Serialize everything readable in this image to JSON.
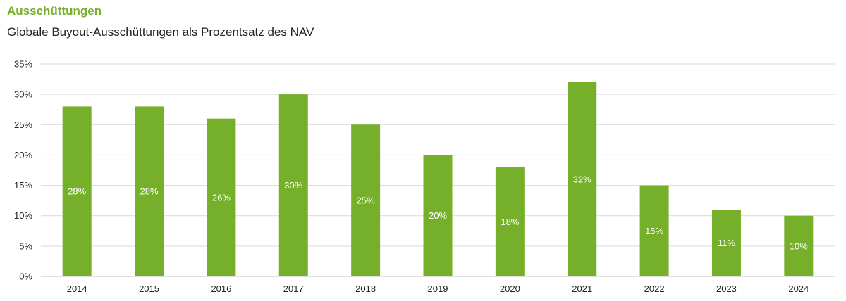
{
  "header": {
    "title": "Ausschüttungen",
    "subtitle": "Globale Buyout-Ausschüttungen als Prozentsatz des NAV"
  },
  "chart_data": {
    "type": "bar",
    "title": "Ausschüttungen",
    "subtitle": "Globale Buyout-Ausschüttungen als Prozentsatz des NAV",
    "categories": [
      "2014",
      "2015",
      "2016",
      "2017",
      "2018",
      "2019",
      "2020",
      "2021",
      "2022",
      "2023",
      "2024"
    ],
    "values": [
      28,
      28,
      26,
      30,
      25,
      20,
      18,
      32,
      15,
      11,
      10
    ],
    "data_labels": [
      "28%",
      "28%",
      "26%",
      "30%",
      "25%",
      "20%",
      "18%",
      "32%",
      "15%",
      "11%",
      "10%"
    ],
    "ylim": [
      0,
      35
    ],
    "yticks": [
      0,
      5,
      10,
      15,
      20,
      25,
      30,
      35
    ],
    "ytick_labels": [
      "0%",
      "5%",
      "10%",
      "15%",
      "20%",
      "25%",
      "30%",
      "35%"
    ],
    "xlabel": "",
    "ylabel": "",
    "grid": true,
    "legend": "none",
    "colors": {
      "bar": "#76b02a",
      "accent": "#76b02a",
      "grid": "#d9d9d9"
    }
  }
}
